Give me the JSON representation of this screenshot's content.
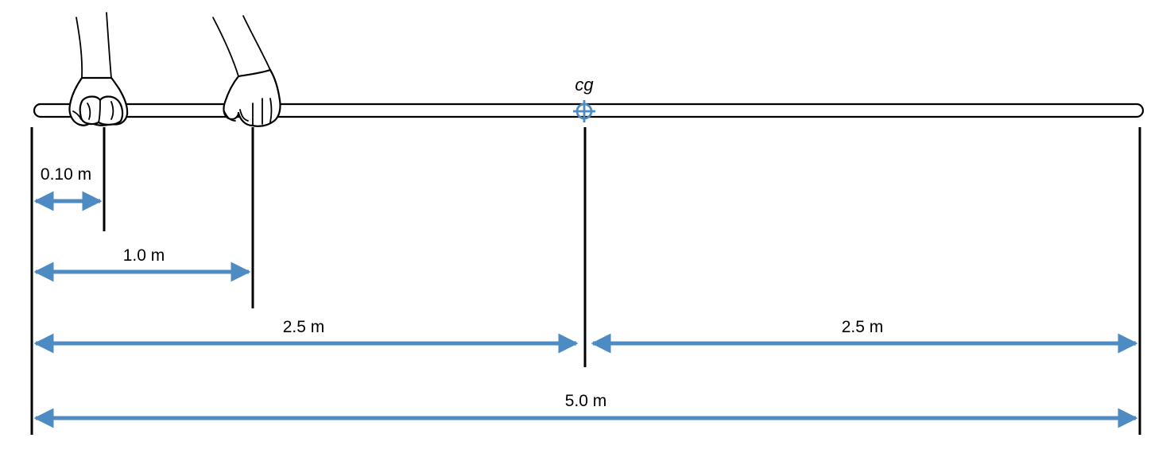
{
  "labels": {
    "cg": "cg",
    "dim_0_10": "0.10 m",
    "dim_1_0": "1.0 m",
    "dim_2_5_left": "2.5 m",
    "dim_2_5_right": "2.5 m",
    "dim_5_0": "5.0 m"
  },
  "colors": {
    "arrow": "#4f8bc3",
    "line": "#000000"
  },
  "icons": {
    "cg_marker": "crosshair-icon",
    "left_hand": "hand-icon",
    "right_hand": "hand-icon"
  }
}
